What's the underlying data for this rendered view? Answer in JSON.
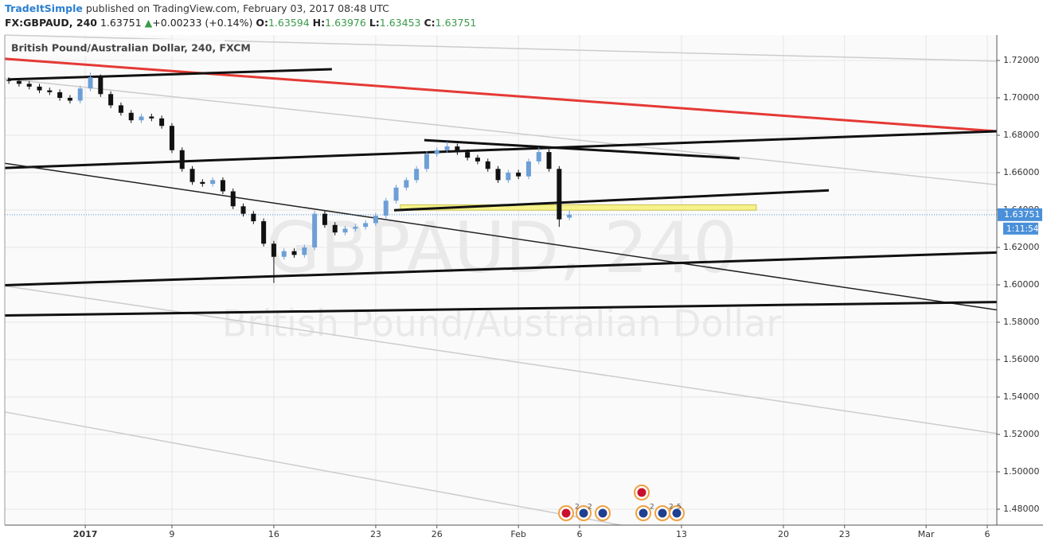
{
  "header": {
    "author": "TradeItSimple",
    "published": "published on TradingView.com, February 03, 2017 08:48 UTC",
    "symbol": "FX:GBPAUD, 240",
    "price": "1.63751",
    "arrow": "▲",
    "change": "+0.00233 (+0.14%)",
    "o_label": "O:",
    "o": "1.63594",
    "h_label": "H:",
    "h": "1.63976",
    "l_label": "L:",
    "l": "1.63453",
    "c_label": "C:",
    "c": "1.63751"
  },
  "chart_data": {
    "type": "candlestick",
    "title": "British Pound/Australian Dollar, 240, FXCM",
    "watermark": "GBPAUD, 240",
    "watermark_subtitle": "British Pound/Australian Dollar",
    "up_color": "#6d9fd6",
    "down_color": "#111111",
    "x": [
      -8.0,
      -7.5,
      -7.0,
      -6.5,
      -6.0,
      -5.5,
      -5.0,
      -4.5,
      -4.0,
      -3.5,
      -3.0,
      -2.5,
      -2.0,
      -1.5,
      -1.0,
      -0.5,
      0,
      0.5,
      1.0,
      1.5,
      2.0,
      2.5,
      3.0,
      3.5,
      4.0,
      4.5,
      5.0,
      5.5,
      6.0,
      6.5,
      7.0,
      7.5,
      8.0,
      8.5,
      9.0,
      9.5,
      10.0,
      10.5,
      11.0,
      11.5,
      12.0,
      12.5,
      13.0,
      13.5,
      14.0,
      14.5,
      15.0,
      15.5,
      16.0,
      16.5,
      17.0,
      17.5,
      18.0,
      18.5,
      19.0,
      19.5
    ],
    "open": [
      1.7095,
      1.709,
      1.7075,
      1.706,
      1.704,
      1.703,
      1.7,
      1.6985,
      1.705,
      1.711,
      1.702,
      1.696,
      1.692,
      1.688,
      1.69,
      1.689,
      1.685,
      1.672,
      1.662,
      1.655,
      1.654,
      1.656,
      1.65,
      1.642,
      1.638,
      1.634,
      1.622,
      1.615,
      1.618,
      1.616,
      1.62,
      1.638,
      1.632,
      1.628,
      1.63,
      1.631,
      1.633,
      1.637,
      1.645,
      1.652,
      1.656,
      1.662,
      1.67,
      1.672,
      1.674,
      1.671,
      1.668,
      1.666,
      1.662,
      1.656,
      1.66,
      1.658,
      1.666,
      1.671,
      1.662,
      1.63594
    ],
    "high": [
      1.711,
      1.7105,
      1.709,
      1.7075,
      1.7055,
      1.7045,
      1.7015,
      1.7065,
      1.7135,
      1.7125,
      1.7035,
      1.6975,
      1.6935,
      1.6915,
      1.6915,
      1.6905,
      1.6865,
      1.6735,
      1.6635,
      1.6565,
      1.6575,
      1.6575,
      1.6515,
      1.6435,
      1.6395,
      1.6355,
      1.6235,
      1.6195,
      1.6195,
      1.6215,
      1.6395,
      1.6395,
      1.6335,
      1.6315,
      1.6325,
      1.6345,
      1.6385,
      1.6465,
      1.6535,
      1.6575,
      1.6635,
      1.6715,
      1.6735,
      1.6765,
      1.6755,
      1.6725,
      1.6695,
      1.6675,
      1.6635,
      1.6615,
      1.6615,
      1.6675,
      1.6735,
      1.6725,
      1.6635,
      1.63976
    ],
    "low": [
      1.7075,
      1.706,
      1.7045,
      1.7025,
      1.7015,
      1.6985,
      1.697,
      1.697,
      1.7035,
      1.7005,
      1.6945,
      1.6905,
      1.6865,
      1.6865,
      1.6875,
      1.6835,
      1.6705,
      1.6605,
      1.6535,
      1.6525,
      1.6525,
      1.6485,
      1.6405,
      1.6365,
      1.6325,
      1.6205,
      1.601,
      1.6135,
      1.6145,
      1.6145,
      1.6185,
      1.6305,
      1.6265,
      1.6265,
      1.6285,
      1.6295,
      1.6315,
      1.6355,
      1.6435,
      1.6505,
      1.6545,
      1.6605,
      1.6685,
      1.6705,
      1.6695,
      1.6665,
      1.6645,
      1.6605,
      1.6545,
      1.6545,
      1.6565,
      1.6565,
      1.6645,
      1.6605,
      1.631,
      1.63453
    ],
    "close": [
      1.709,
      1.7075,
      1.706,
      1.704,
      1.703,
      1.7,
      1.6985,
      1.705,
      1.711,
      1.702,
      1.696,
      1.692,
      1.688,
      1.69,
      1.689,
      1.685,
      1.672,
      1.662,
      1.655,
      1.654,
      1.656,
      1.65,
      1.642,
      1.638,
      1.634,
      1.622,
      1.615,
      1.618,
      1.616,
      1.62,
      1.638,
      1.632,
      1.628,
      1.63,
      1.631,
      1.633,
      1.637,
      1.645,
      1.652,
      1.656,
      1.662,
      1.67,
      1.672,
      1.674,
      1.671,
      1.668,
      1.666,
      1.662,
      1.656,
      1.66,
      1.658,
      1.666,
      1.671,
      1.662,
      1.635,
      1.63751
    ],
    "last_price": 1.63751,
    "last_price_label": "1.63751",
    "countdown": "1:11:54",
    "xlim": [
      -8.2,
      40.47
    ],
    "ylim": [
      1.4715,
      1.7336
    ],
    "xticks": [
      {
        "value": -4.25,
        "label": "2017"
      },
      {
        "value": 0,
        "label": "9"
      },
      {
        "value": 5,
        "label": "16"
      },
      {
        "value": 10,
        "label": "23"
      },
      {
        "value": 13,
        "label": "26"
      },
      {
        "value": 17,
        "label": "Feb"
      },
      {
        "value": 20,
        "label": "6"
      },
      {
        "value": 25,
        "label": "13"
      },
      {
        "value": 30,
        "label": "20"
      },
      {
        "value": 33,
        "label": "23"
      },
      {
        "value": 37,
        "label": "Mar"
      },
      {
        "value": 40,
        "label": "6"
      }
    ],
    "yticks": [
      {
        "value": 1.48,
        "label": "1.48000"
      },
      {
        "value": 1.5,
        "label": "1.50000"
      },
      {
        "value": 1.52,
        "label": "1.52000"
      },
      {
        "value": 1.54,
        "label": "1.54000"
      },
      {
        "value": 1.56,
        "label": "1.56000"
      },
      {
        "value": 1.58,
        "label": "1.58000"
      },
      {
        "value": 1.6,
        "label": "1.60000"
      },
      {
        "value": 1.62,
        "label": "1.62000"
      },
      {
        "value": 1.64,
        "label": "1.64000"
      },
      {
        "value": 1.66,
        "label": "1.66000"
      },
      {
        "value": 1.68,
        "label": "1.68000"
      },
      {
        "value": 1.7,
        "label": "1.70000"
      },
      {
        "value": 1.72,
        "label": "1.72000"
      }
    ],
    "grid": true,
    "trendlines": [
      {
        "points": [
          -8.2,
          1.7336,
          40.47,
          1.7196
        ],
        "color": "#cccccc",
        "width": 1.5
      },
      {
        "points": [
          -8.2,
          1.7102,
          40.47,
          1.6535
        ],
        "color": "#cccccc",
        "width": 1.5
      },
      {
        "points": [
          -8.2,
          1.5994,
          40.47,
          1.5205
        ],
        "color": "#cccccc",
        "width": 1.5
      },
      {
        "points": [
          -8.2,
          1.532,
          22.03,
          1.4715
        ],
        "color": "#cccccc",
        "width": 1.5
      },
      {
        "points": [
          -8.2,
          1.7209,
          40.47,
          1.6821
        ],
        "color": "#e53935",
        "width": 3
      },
      {
        "points": [
          -8.05,
          1.7098,
          7.85,
          1.7153
        ],
        "color": "#111111",
        "width": 3
      },
      {
        "points": [
          -8.2,
          1.6625,
          40.47,
          1.6821
        ],
        "color": "#111111",
        "width": 3
      },
      {
        "points": [
          12.38,
          1.6774,
          27.85,
          1.6676
        ],
        "color": "#111111",
        "width": 3
      },
      {
        "points": [
          10.9,
          1.6399,
          32.23,
          1.6505
        ],
        "color": "#111111",
        "width": 3
      },
      {
        "points": [
          -8.2,
          1.665,
          40.47,
          1.5866
        ],
        "color": "#222222",
        "width": 1.5
      },
      {
        "points": [
          -8.2,
          1.5998,
          40.47,
          1.6173
        ],
        "color": "#111111",
        "width": 3
      },
      {
        "points": [
          -8.2,
          1.5836,
          40.47,
          1.5908
        ],
        "color": "#111111",
        "width": 3
      }
    ],
    "zone": {
      "x": [
        11.21,
        28.67
      ],
      "y": [
        1.6399,
        1.6428
      ],
      "color": "#f5f28a"
    },
    "events": [
      "2",
      "2",
      "2",
      "2",
      "5"
    ]
  }
}
